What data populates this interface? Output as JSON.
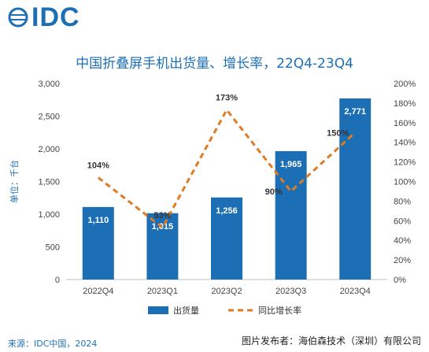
{
  "logo": {
    "text": "IDC"
  },
  "title": "中国折叠屏手机出货量、增长率，22Q4-23Q4",
  "source": "来源：IDC中国，2024",
  "watermark": "图片发布者：海伯森技术（深圳）有限公司",
  "colors": {
    "bar": "#1d6fb5",
    "line": "#e07b24",
    "brand": "#1d6fb5"
  },
  "chart_data": {
    "type": "bar",
    "categories": [
      "2022Q4",
      "2023Q1",
      "2023Q2",
      "2023Q3",
      "2023Q4"
    ],
    "series": [
      {
        "name": "出货量",
        "type": "bar",
        "axis": "left",
        "values": [
          1110,
          1015,
          1256,
          1965,
          2771
        ],
        "labels": [
          "1,110",
          "1,015",
          "1,256",
          "1,965",
          "2,771"
        ]
      },
      {
        "name": "同比增长率",
        "type": "line",
        "style": "dashed",
        "axis": "right",
        "values": [
          104,
          53,
          173,
          90,
          150
        ],
        "labels": [
          "104%",
          "53%",
          "173%",
          "90%",
          "150%"
        ]
      }
    ],
    "ylabel": "单位：千台",
    "ylim": [
      0,
      3000
    ],
    "yticks": [
      "0",
      "500",
      "1,000",
      "1,500",
      "2,000",
      "2,500",
      "3,000"
    ],
    "y2lim": [
      0,
      200
    ],
    "y2ticks": [
      "0%",
      "20%",
      "40%",
      "60%",
      "80%",
      "100%",
      "120%",
      "140%",
      "160%",
      "180%",
      "200%"
    ],
    "legend_position": "bottom",
    "grid": false
  }
}
